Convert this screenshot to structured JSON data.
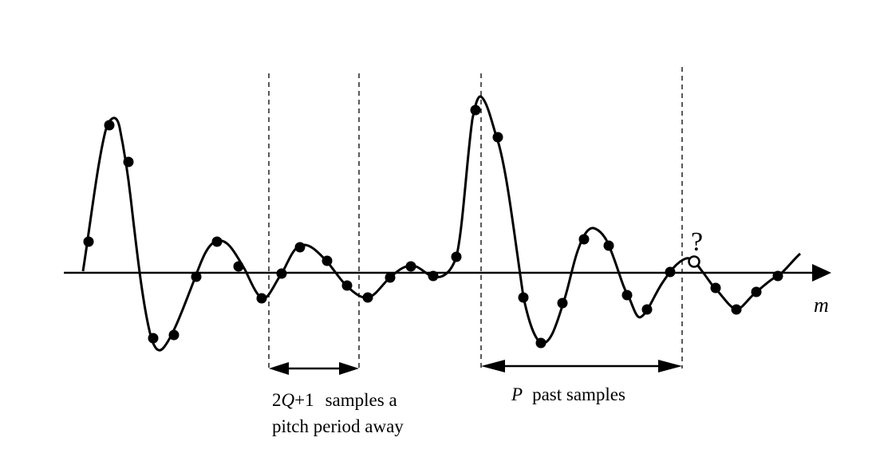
{
  "labels": {
    "axis": "m",
    "question": "?",
    "window_left_prefix": "2",
    "window_left_q": "Q",
    "window_left_suffix": "+1",
    "window_left_line1_text": "samples a",
    "window_left_line2": "pitch period away",
    "window_right_p": "P",
    "window_right_text": "past samples"
  },
  "colors": {
    "ink": "#000000",
    "background": "#ffffff"
  }
}
